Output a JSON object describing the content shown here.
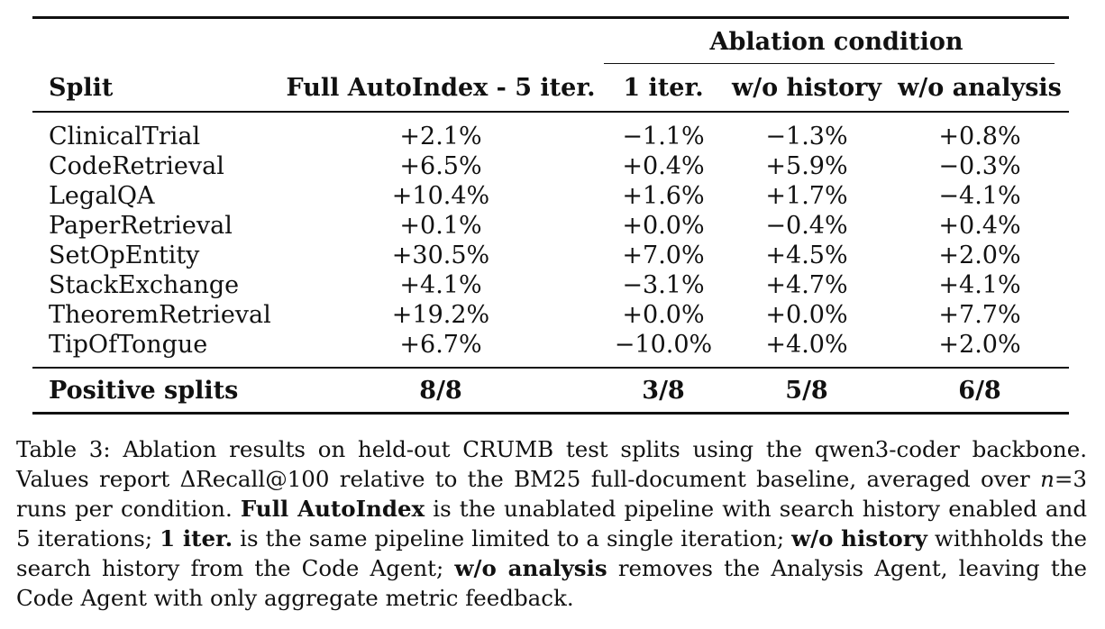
{
  "table": {
    "group_header": "Ablation condition",
    "columns": {
      "split": "Split",
      "full": "Full AutoIndex - 5 iter.",
      "one_iter": "1 iter.",
      "wo_history": "w/o history",
      "wo_analysis": "w/o analysis"
    },
    "rows": [
      {
        "split": "ClinicalTrial",
        "full": "+2.1%",
        "one_iter": "−1.1%",
        "wo_history": "−1.3%",
        "wo_analysis": "+0.8%"
      },
      {
        "split": "CodeRetrieval",
        "full": "+6.5%",
        "one_iter": "+0.4%",
        "wo_history": "+5.9%",
        "wo_analysis": "−0.3%"
      },
      {
        "split": "LegalQA",
        "full": "+10.4%",
        "one_iter": "+1.6%",
        "wo_history": "+1.7%",
        "wo_analysis": "−4.1%"
      },
      {
        "split": "PaperRetrieval",
        "full": "+0.1%",
        "one_iter": "+0.0%",
        "wo_history": "−0.4%",
        "wo_analysis": "+0.4%"
      },
      {
        "split": "SetOpEntity",
        "full": "+30.5%",
        "one_iter": "+7.0%",
        "wo_history": "+4.5%",
        "wo_analysis": "+2.0%"
      },
      {
        "split": "StackExchange",
        "full": "+4.1%",
        "one_iter": "−3.1%",
        "wo_history": "+4.7%",
        "wo_analysis": "+4.1%"
      },
      {
        "split": "TheoremRetrieval",
        "full": "+19.2%",
        "one_iter": "+0.0%",
        "wo_history": "+0.0%",
        "wo_analysis": "+7.7%"
      },
      {
        "split": "TipOfTongue",
        "full": "+6.7%",
        "one_iter": "−10.0%",
        "wo_history": "+4.0%",
        "wo_analysis": "+2.0%"
      }
    ],
    "summary": {
      "split": "Positive splits",
      "full": "8/8",
      "one_iter": "3/8",
      "wo_history": "5/8",
      "wo_analysis": "6/8"
    }
  },
  "caption": {
    "s1": "Table 3: Ablation results on held-out CRUMB test splits using the qwen3-coder backbone. Values report ΔRecall@100 relative to the BM25 full-document baseline, averaged over ",
    "n_var": "n",
    "s2": "=3 runs per condition. ",
    "b1": "Full AutoIndex",
    "s3": " is the unablated pipeline with search history enabled and 5 iterations; ",
    "b2": "1 iter.",
    "s4": " is the same pipeline limited to a single iteration; ",
    "b3": "w/o history",
    "s5": " withholds the search history from the Code Agent; ",
    "b4": "w/o analysis",
    "s6": " removes the Analysis Agent, leaving the Code Agent with only aggregate metric feedback."
  }
}
